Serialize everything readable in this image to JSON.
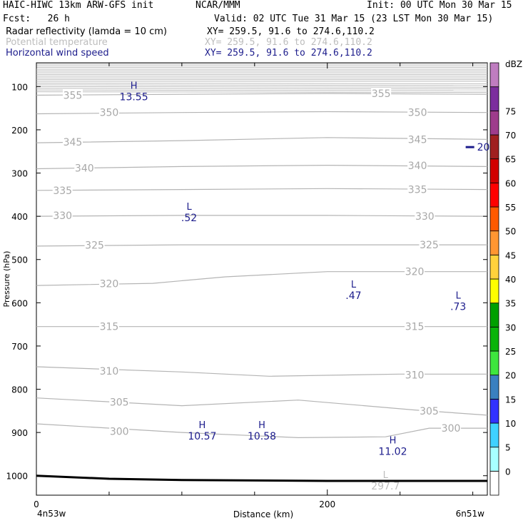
{
  "header": {
    "title_left": "HAIC-HIWC 13km ARW-GFS init",
    "title_mid": "NCAR/MMM",
    "init": "Init: 00 UTC Mon 30 Mar 15",
    "fcst": "Fcst:   26 h",
    "valid": "Valid: 02 UTC Tue 31 Mar 15 (23 LST Mon 30 Mar 15)",
    "fields": [
      {
        "name": "Radar reflectivity (lamda = 10 cm)",
        "xy": "XY= 259.5, 91.6 to 274.6,110.2",
        "color": "#000000"
      },
      {
        "name": "Potential temperature",
        "xy": "XY= 259.5, 91.6 to 274.6,110.2",
        "color": "#bdbdbd"
      },
      {
        "name": "Horizontal wind speed",
        "xy": "XY= 259.5, 91.6 to 274.6,110.2",
        "color": "#1c1c8c"
      }
    ]
  },
  "chart_data": {
    "type": "cross-section",
    "xlabel": "Distance (km)",
    "ylabel": "Pressure (hPa)",
    "xlim": [
      0,
      310
    ],
    "ylim": [
      1045,
      45
    ],
    "x_ticks": [
      "0",
      "200"
    ],
    "x_tick_values": [
      0,
      200
    ],
    "x_minor_ticks": [
      50,
      100,
      150,
      250,
      300
    ],
    "x_endpoint_labels": [
      "4n53w",
      "6n51w"
    ],
    "y_ticks": [
      100,
      200,
      300,
      400,
      500,
      600,
      700,
      800,
      900,
      1000
    ],
    "colorbar": {
      "unit": "dBZ",
      "levels": [
        "0",
        "5",
        "10",
        "15",
        "20",
        "25",
        "30",
        "35",
        "40",
        "45",
        "50",
        "55",
        "60",
        "65",
        "70",
        "75"
      ],
      "colors": [
        "#ffffff",
        "#a8ffff",
        "#3fd2ff",
        "#3232ff",
        "#3a80c0",
        "#3ee63e",
        "#0ab40a",
        "#00a000",
        "#fefe00",
        "#ffd23c",
        "#ff9632",
        "#ff5a00",
        "#ff0000",
        "#d20000",
        "#a02020",
        "#9e3c8c",
        "#7c2e9e",
        "#bf7dc0"
      ]
    },
    "theta_contours": [
      {
        "label": "355",
        "points": [
          [
            0,
            120
          ],
          [
            100,
            118
          ],
          [
            200,
            116
          ],
          [
            310,
            118
          ]
        ],
        "label_positions": [
          [
            25,
            120
          ],
          [
            237,
            116
          ]
        ]
      },
      {
        "label": "350",
        "points": [
          [
            0,
            163
          ],
          [
            100,
            160
          ],
          [
            200,
            158
          ],
          [
            310,
            160
          ]
        ],
        "label_positions": [
          [
            50,
            160
          ],
          [
            262,
            160
          ]
        ]
      },
      {
        "label": "345",
        "points": [
          [
            0,
            230
          ],
          [
            100,
            225
          ],
          [
            200,
            218
          ],
          [
            310,
            222
          ]
        ],
        "label_positions": [
          [
            25,
            228
          ],
          [
            262,
            222
          ]
        ]
      },
      {
        "label": "340",
        "points": [
          [
            0,
            290
          ],
          [
            100,
            285
          ],
          [
            200,
            282
          ],
          [
            310,
            285
          ]
        ],
        "label_positions": [
          [
            33,
            288
          ],
          [
            262,
            283
          ]
        ]
      },
      {
        "label": "335",
        "points": [
          [
            0,
            340
          ],
          [
            100,
            338
          ],
          [
            200,
            336
          ],
          [
            310,
            338
          ]
        ],
        "label_positions": [
          [
            18,
            340
          ],
          [
            262,
            338
          ]
        ]
      },
      {
        "label": "330",
        "points": [
          [
            0,
            400
          ],
          [
            100,
            398
          ],
          [
            200,
            398
          ],
          [
            310,
            400
          ]
        ],
        "label_positions": [
          [
            18,
            398
          ],
          [
            267,
            400
          ]
        ]
      },
      {
        "label": "325",
        "points": [
          [
            0,
            469
          ],
          [
            100,
            466
          ],
          [
            200,
            466
          ],
          [
            310,
            466
          ]
        ],
        "label_positions": [
          [
            40,
            467
          ],
          [
            270,
            466
          ]
        ]
      },
      {
        "label": "320",
        "points": [
          [
            0,
            560
          ],
          [
            80,
            555
          ],
          [
            130,
            540
          ],
          [
            200,
            528
          ],
          [
            310,
            528
          ]
        ],
        "label_positions": [
          [
            50,
            556
          ],
          [
            260,
            528
          ]
        ]
      },
      {
        "label": "315",
        "points": [
          [
            0,
            655
          ],
          [
            100,
            655
          ],
          [
            200,
            655
          ],
          [
            310,
            655
          ]
        ],
        "label_positions": [
          [
            50,
            655
          ],
          [
            260,
            655
          ]
        ]
      },
      {
        "label": "310",
        "points": [
          [
            0,
            748
          ],
          [
            100,
            760
          ],
          [
            160,
            770
          ],
          [
            250,
            765
          ],
          [
            310,
            765
          ]
        ],
        "label_positions": [
          [
            50,
            758
          ],
          [
            260,
            767
          ]
        ]
      },
      {
        "label": "305",
        "points": [
          [
            0,
            820
          ],
          [
            100,
            838
          ],
          [
            180,
            825
          ],
          [
            260,
            848
          ],
          [
            310,
            860
          ]
        ],
        "label_positions": [
          [
            57,
            830
          ],
          [
            270,
            850
          ]
        ]
      },
      {
        "label": "300",
        "points": [
          [
            0,
            880
          ],
          [
            100,
            900
          ],
          [
            180,
            912
          ],
          [
            240,
            910
          ],
          [
            270,
            890
          ],
          [
            310,
            890
          ]
        ],
        "label_positions": [
          [
            57,
            897
          ],
          [
            285,
            890
          ]
        ]
      }
    ],
    "wind_labels": [
      {
        "kind": "H",
        "value": "13.55",
        "x": 67,
        "y": 105
      },
      {
        "kind": "L",
        "value": ".52",
        "x": 105,
        "y": 385
      },
      {
        "kind": "L",
        "value": ".47",
        "x": 218,
        "y": 565
      },
      {
        "kind": "L",
        "value": ".73",
        "x": 290,
        "y": 590
      },
      {
        "kind": "H",
        "value": "10.57",
        "x": 114,
        "y": 890
      },
      {
        "kind": "H",
        "value": "10.58",
        "x": 155,
        "y": 890
      },
      {
        "kind": "H",
        "value": "11.02",
        "x": 245,
        "y": 925
      }
    ],
    "theta_extreme": {
      "kind": "L",
      "value": "297.7",
      "x": 240,
      "y": 1005
    },
    "edge_label": {
      "value": "20",
      "x": 301,
      "y": 240
    },
    "surface": [
      [
        0,
        1000
      ],
      [
        50,
        1007
      ],
      [
        100,
        1010
      ],
      [
        200,
        1012
      ],
      [
        310,
        1012
      ]
    ]
  }
}
